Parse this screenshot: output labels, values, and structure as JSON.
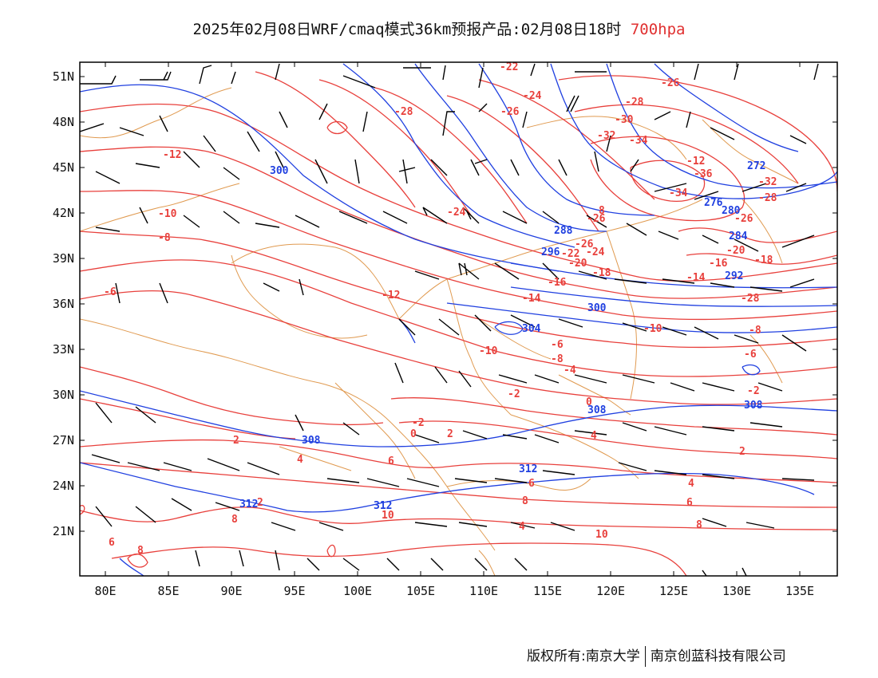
{
  "header": {
    "title": "2025年02月08日WRF/cmaq模式36km预报产品:02月08日18时",
    "level": "700hpa"
  },
  "axes": {
    "lon_ticks": [
      "80E",
      "85E",
      "90E",
      "95E",
      "100E",
      "105E",
      "110E",
      "115E",
      "120E",
      "125E",
      "130E",
      "135E"
    ],
    "lat_ticks": [
      "51N",
      "48N",
      "45N",
      "42N",
      "39N",
      "36N",
      "33N",
      "30N",
      "27N",
      "24N",
      "21N"
    ]
  },
  "colors": {
    "temperature": "#e8403c",
    "height": "#2040e0",
    "border": "#e09a50",
    "wind": "#000000",
    "frame": "#000000"
  },
  "labels": {
    "temperature": [
      "-22",
      "-24",
      "-26",
      "-28",
      "-26",
      "-26",
      "-12",
      "-10",
      "-8",
      "-28",
      "-30",
      "-32",
      "-34",
      "-36",
      "-34",
      "-32",
      "-28",
      "-26",
      "-24",
      "-22",
      "-20",
      "-18",
      "-16",
      "-14",
      "-12",
      "-10",
      "-8",
      "-6",
      "-4",
      "-2",
      "0",
      "2",
      "4",
      "6",
      "8",
      "10",
      "-6",
      "-12",
      "-18",
      "-20",
      "-16",
      "-24",
      "-14",
      "-10",
      "-8",
      "-6",
      "-2",
      "-2",
      "0",
      "2",
      "4",
      "6",
      "8",
      "2",
      "4",
      "6",
      "8",
      "10",
      "2",
      "4",
      "6",
      "8",
      "8",
      "-28",
      "-26",
      "-20"
    ],
    "height": [
      "300",
      "272",
      "276",
      "280",
      "284",
      "288",
      "292",
      "296",
      "300",
      "304",
      "308",
      "312",
      "308",
      "312",
      "312",
      "308"
    ]
  },
  "footer": {
    "left": "版权所有:南京大学",
    "right": "南京创蓝科技有限公司"
  }
}
